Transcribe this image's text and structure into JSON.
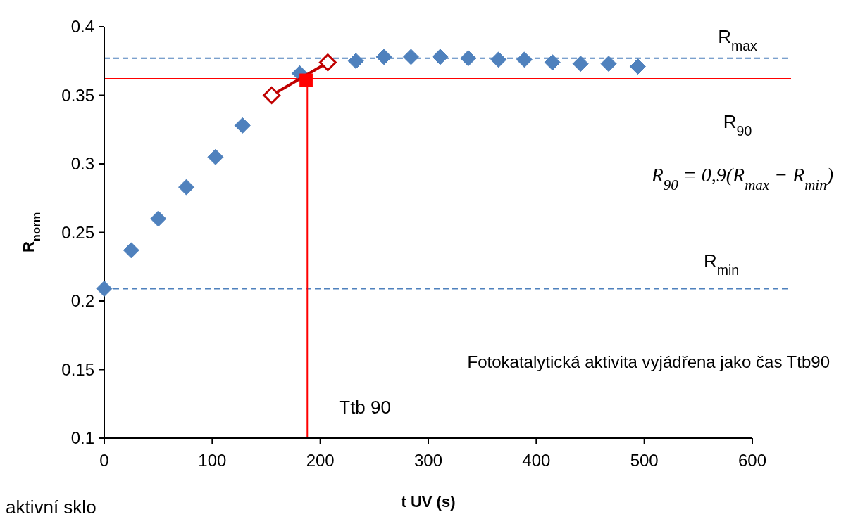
{
  "chart_data": {
    "type": "scatter",
    "xlabel": "t UV (s)",
    "ylabel": "R$_{norm}$",
    "xlim": [
      0,
      600
    ],
    "ylim": [
      0.1,
      0.4
    ],
    "xticks": [
      0,
      100,
      200,
      300,
      400,
      500,
      600
    ],
    "yticks": [
      {
        "value": 0.1,
        "label": "0.1"
      },
      {
        "value": 0.15,
        "label": "0.15"
      },
      {
        "value": 0.2,
        "label": "0.2"
      },
      {
        "value": 0.25,
        "label": "0.25"
      },
      {
        "value": 0.3,
        "label": "0.3"
      },
      {
        "value": 0.35,
        "label": "0.35"
      },
      {
        "value": 0.4,
        "label": "0.4"
      }
    ],
    "grid": false,
    "series": [
      {
        "marker": "diamond",
        "color": "#4f81bd",
        "x": [
          0,
          25,
          50,
          76,
          103,
          128,
          181,
          233,
          259,
          284,
          311,
          337,
          365,
          389,
          415,
          441,
          467,
          494
        ],
        "values": [
          0.209,
          0.237,
          0.26,
          0.283,
          0.305,
          0.328,
          0.366,
          0.375,
          0.378,
          0.378,
          0.378,
          0.377,
          0.376,
          0.376,
          0.374,
          0.373,
          0.373,
          0.371
        ]
      },
      {
        "type": "line",
        "marker": "diamond",
        "color": "#c00000",
        "x": [
          155,
          207
        ],
        "values": [
          0.35,
          0.374
        ]
      },
      {
        "type": "scatter",
        "marker": "square",
        "color": "#ff0000",
        "x": [
          187
        ],
        "values": [
          0.361
        ]
      }
    ],
    "ref_lines": [
      {
        "axis": "y",
        "value": 0.377,
        "color": "#4f81bd",
        "line_style": "dashed"
      },
      {
        "axis": "y",
        "value": 0.362,
        "color": "#ff0000",
        "line_style": "solid"
      },
      {
        "axis": "y",
        "value": 0.209,
        "color": "#4f81bd",
        "line_style": "dashed"
      },
      {
        "axis": "x",
        "value": 188,
        "color": "#ff0000",
        "line_style": "solid"
      }
    ],
    "annotations": [
      {
        "text": "R$_{max}$",
        "x": 570,
        "y": 0.377
      },
      {
        "text": "R$_{90}$",
        "x": 570,
        "y": 0.362
      },
      {
        "text": "R$_{min}$",
        "x": 555,
        "y": 0.209
      },
      {
        "text": "Ttb 90",
        "x": 188,
        "y": 0.1
      },
      "R$_{90}$ = 0,9(R$_{max}$ − R$_{min}$)",
      "Fotokatalytická aktivita vyjádřena jako čas Ttb90",
      "aktivní sklo"
    ]
  }
}
